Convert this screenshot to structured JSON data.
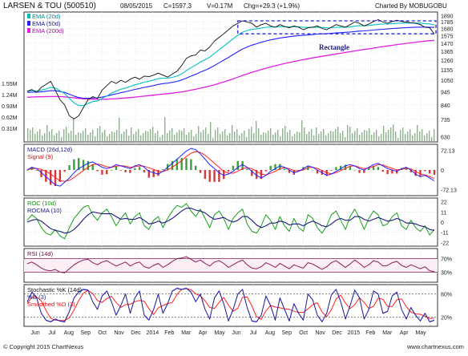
{
  "header": {
    "title": "LARSEN & TOU (500510)",
    "date": "08/05/2015",
    "close": "C=1597.3",
    "volume": "V=0.17M",
    "change": "Chg=+29.3 (+1.9%)",
    "brand": "Charted By MOBUGOBU"
  },
  "footer": {
    "copyright": "© Copyright 2015 ChartNexus",
    "site": "www.chartnexus.com"
  },
  "chart_data": {
    "type": "line",
    "x_axis_labels": [
      "Jun",
      "Jul",
      "Aug",
      "Sep",
      "Oct",
      "Nov",
      "Dec",
      "2014",
      "Feb",
      "Mar",
      "Apr",
      "May",
      "Jun",
      "Jul",
      "Aug",
      "Sep",
      "Oct",
      "Nov",
      "Dec",
      "2015",
      "Feb",
      "Mar",
      "Apr",
      "May"
    ],
    "price_panel": {
      "legend": [
        "EMA (20d)",
        "EMA (50d)",
        "EMA (200d)"
      ],
      "legend_colors": [
        "#00c0c0",
        "#2222ff",
        "#e020e0"
      ],
      "y_ticks": [
        1890,
        1785,
        1680,
        1575,
        1470,
        1365,
        1260,
        1155,
        1050,
        945,
        840,
        735,
        630
      ],
      "volume_ticks": [
        "1.55M",
        "1.24M",
        "0.93M",
        "0.62M",
        "0.31M"
      ],
      "annotation": "Rectangle",
      "rectangle_range": [
        1600,
        1800
      ],
      "close_series": [
        950,
        965,
        940,
        985,
        1010,
        1040,
        960,
        880,
        840,
        760,
        740,
        760,
        820,
        880,
        905,
        890,
        960,
        1000,
        1040,
        1020,
        1050,
        1030,
        1060,
        1080,
        1060,
        1090,
        1085,
        1100,
        1120,
        1100,
        1080,
        1110,
        1140,
        1200,
        1280,
        1310,
        1320,
        1380,
        1370,
        1420,
        1500,
        1550,
        1600,
        1660,
        1720,
        1760,
        1800,
        1780,
        1760,
        1700,
        1740,
        1760,
        1720,
        1700,
        1740,
        1710,
        1690,
        1720,
        1700,
        1660,
        1690,
        1700,
        1720,
        1680,
        1660,
        1700,
        1740,
        1720,
        1700,
        1740,
        1780,
        1760,
        1720,
        1750,
        1790,
        1820,
        1780,
        1760,
        1790,
        1810,
        1790,
        1780,
        1770,
        1760,
        1740,
        1700,
        1690,
        1597
      ],
      "ema20": [
        950,
        955,
        952,
        960,
        970,
        985,
        978,
        955,
        930,
        890,
        855,
        835,
        835,
        850,
        865,
        870,
        890,
        910,
        935,
        950,
        968,
        978,
        992,
        1008,
        1018,
        1032,
        1040,
        1052,
        1065,
        1070,
        1070,
        1078,
        1090,
        1112,
        1146,
        1178,
        1205,
        1240,
        1265,
        1295,
        1340,
        1385,
        1430,
        1480,
        1530,
        1580,
        1625,
        1650,
        1668,
        1672,
        1685,
        1698,
        1702,
        1702,
        1708,
        1708,
        1705,
        1708,
        1706,
        1698,
        1697,
        1697,
        1700,
        1696,
        1690,
        1692,
        1698,
        1700,
        1700,
        1706,
        1716,
        1722,
        1722,
        1726,
        1734,
        1745,
        1748,
        1749,
        1754,
        1760,
        1763,
        1764,
        1765,
        1765,
        1763,
        1756,
        1750,
        1735
      ],
      "ema50": [
        940,
        942,
        942,
        945,
        950,
        956,
        955,
        948,
        940,
        925,
        910,
        898,
        892,
        892,
        894,
        895,
        901,
        910,
        920,
        928,
        938,
        946,
        956,
        966,
        974,
        984,
        992,
        1001,
        1011,
        1018,
        1023,
        1030,
        1039,
        1052,
        1070,
        1090,
        1108,
        1130,
        1150,
        1172,
        1200,
        1230,
        1260,
        1292,
        1326,
        1360,
        1394,
        1420,
        1444,
        1462,
        1482,
        1500,
        1515,
        1527,
        1540,
        1550,
        1558,
        1567,
        1574,
        1578,
        1584,
        1590,
        1596,
        1600,
        1603,
        1607,
        1613,
        1618,
        1622,
        1627,
        1634,
        1640,
        1644,
        1649,
        1655,
        1663,
        1668,
        1672,
        1678,
        1684,
        1688,
        1692,
        1696,
        1699,
        1701,
        1701,
        1700,
        1696
      ],
      "ema200": [
        900,
        902,
        903,
        904,
        905,
        906,
        906,
        905,
        903,
        899,
        895,
        891,
        887,
        885,
        884,
        883,
        883,
        884,
        886,
        888,
        891,
        894,
        897,
        901,
        905,
        909,
        913,
        917,
        922,
        926,
        930,
        934,
        939,
        945,
        952,
        960,
        968,
        977,
        986,
        996,
        1008,
        1021,
        1034,
        1049,
        1064,
        1080,
        1097,
        1113,
        1128,
        1142,
        1157,
        1171,
        1184,
        1197,
        1210,
        1222,
        1233,
        1245,
        1256,
        1266,
        1276,
        1286,
        1296,
        1305,
        1314,
        1323,
        1333,
        1342,
        1351,
        1360,
        1370,
        1379,
        1388,
        1396,
        1406,
        1416,
        1425,
        1433,
        1442,
        1451,
        1459,
        1467,
        1475,
        1483,
        1490,
        1497,
        1503,
        1508
      ]
    },
    "macd_panel": {
      "legend": [
        "MACD (26d,12d)",
        "Signal (9)"
      ],
      "legend_colors": [
        "#2222ff",
        "#ff2020"
      ],
      "y_ticks": [
        "72.13",
        "0",
        "-72.13"
      ],
      "macd": [
        0,
        10,
        5,
        -10,
        -25,
        -40,
        -55,
        -60,
        -45,
        -30,
        -10,
        5,
        15,
        25,
        30,
        20,
        10,
        5,
        10,
        20,
        15,
        10,
        5,
        15,
        20,
        10,
        -5,
        -10,
        -15,
        -5,
        10,
        25,
        40,
        55,
        70,
        80,
        75,
        60,
        40,
        20,
        5,
        -10,
        -20,
        -15,
        -5,
        10,
        20,
        10,
        -5,
        -20,
        -30,
        -20,
        -5,
        5,
        15,
        10,
        0,
        -10,
        -5,
        5,
        15,
        10,
        0,
        -10,
        -20,
        -15,
        -5,
        5,
        15,
        20,
        15,
        5,
        0,
        10,
        20,
        25,
        15,
        5,
        0,
        -5,
        5,
        10,
        0,
        -15,
        -25,
        -20,
        -30,
        -40
      ],
      "signal": [
        0,
        5,
        6,
        2,
        -5,
        -15,
        -28,
        -40,
        -42,
        -38,
        -28,
        -15,
        -2,
        10,
        20,
        22,
        18,
        12,
        10,
        14,
        16,
        14,
        10,
        12,
        15,
        14,
        8,
        2,
        -5,
        -6,
        0,
        10,
        22,
        35,
        50,
        62,
        68,
        65,
        55,
        40,
        25,
        10,
        -5,
        -12,
        -12,
        -5,
        5,
        8,
        5,
        -5,
        -15,
        -18,
        -12,
        -5,
        5,
        8,
        5,
        -2,
        -4,
        0,
        8,
        10,
        6,
        -2,
        -10,
        -14,
        -10,
        -2,
        6,
        14,
        15,
        10,
        5,
        7,
        13,
        20,
        18,
        12,
        6,
        1,
        2,
        6,
        4,
        -5,
        -15,
        -18,
        -24,
        -32
      ]
    },
    "roc_panel": {
      "legend": [
        "ROC (10d)",
        "ROCMA (10)"
      ],
      "legend_colors": [
        "#1aa01a",
        "#1a1a80"
      ],
      "y_ticks": [
        "22",
        "11",
        "0",
        "-11",
        "-22"
      ],
      "roc": [
        2,
        8,
        4,
        -6,
        -12,
        -14,
        -8,
        -15,
        -18,
        -6,
        4,
        10,
        16,
        18,
        8,
        2,
        10,
        14,
        6,
        -4,
        4,
        10,
        -2,
        6,
        10,
        -4,
        -8,
        2,
        6,
        -6,
        4,
        12,
        18,
        16,
        20,
        12,
        6,
        14,
        4,
        -6,
        8,
        12,
        4,
        -8,
        4,
        10,
        14,
        -2,
        -10,
        -12,
        -4,
        8,
        2,
        -8,
        6,
        -4,
        -10,
        4,
        -6,
        -10,
        8,
        4,
        -6,
        -12,
        -4,
        8,
        12,
        2,
        -8,
        6,
        14,
        4,
        -8,
        4,
        12,
        8,
        -4,
        -2,
        6,
        10,
        -4,
        -8,
        2,
        -6,
        -10,
        -4,
        -14,
        -8
      ],
      "rocma": [
        0,
        2,
        3,
        1,
        -3,
        -7,
        -9,
        -10,
        -12,
        -11,
        -8,
        -3,
        3,
        8,
        11,
        10,
        9,
        9,
        9,
        6,
        3,
        4,
        3,
        3,
        5,
        2,
        -2,
        -1,
        1,
        -1,
        1,
        4,
        8,
        12,
        15,
        15,
        13,
        12,
        10,
        6,
        3,
        4,
        5,
        2,
        0,
        2,
        6,
        6,
        2,
        -3,
        -6,
        -4,
        -1,
        -1,
        1,
        0,
        -3,
        -2,
        -2,
        -4,
        -1,
        1,
        -1,
        -4,
        -5,
        -2,
        2,
        4,
        2,
        2,
        6,
        6,
        3,
        1,
        3,
        5,
        3,
        1,
        2,
        4,
        2,
        -1,
        -1,
        -2,
        -4,
        -5,
        -8,
        -9
      ]
    },
    "rsi_panel": {
      "legend": [
        "RSI (14d)"
      ],
      "legend_colors": [
        "#8a1a5a"
      ],
      "y_ticks": [
        "70%",
        "30%"
      ],
      "rsi": [
        55,
        60,
        52,
        42,
        36,
        34,
        38,
        30,
        28,
        40,
        52,
        60,
        66,
        68,
        58,
        52,
        60,
        64,
        56,
        48,
        54,
        60,
        48,
        56,
        60,
        46,
        42,
        50,
        56,
        44,
        52,
        62,
        70,
        72,
        76,
        68,
        60,
        66,
        56,
        48,
        60,
        64,
        56,
        44,
        52,
        60,
        66,
        52,
        42,
        40,
        46,
        58,
        52,
        44,
        56,
        48,
        40,
        52,
        46,
        42,
        58,
        54,
        46,
        38,
        46,
        58,
        64,
        54,
        44,
        54,
        66,
        56,
        44,
        52,
        64,
        60,
        48,
        50,
        58,
        62,
        50,
        44,
        52,
        46,
        40,
        46,
        34,
        32
      ],
      "levels": [
        70,
        30
      ]
    },
    "stochastic_panel": {
      "legend": [
        "Stochastic %K (14d)",
        "%D (3)",
        "Smoothed %D (3)"
      ],
      "legend_colors": [
        "#222222",
        "#2222ff",
        "#ff2020"
      ],
      "y_ticks": [
        "80%",
        "20%"
      ],
      "k": [
        60,
        85,
        70,
        30,
        12,
        8,
        15,
        10,
        8,
        35,
        70,
        85,
        92,
        90,
        60,
        40,
        75,
        88,
        60,
        25,
        50,
        80,
        30,
        70,
        88,
        25,
        12,
        40,
        80,
        30,
        55,
        88,
        95,
        92,
        95,
        85,
        60,
        80,
        40,
        15,
        70,
        88,
        55,
        10,
        40,
        80,
        92,
        45,
        10,
        8,
        25,
        75,
        50,
        12,
        70,
        40,
        10,
        55,
        30,
        12,
        80,
        65,
        25,
        8,
        30,
        78,
        92,
        60,
        15,
        50,
        90,
        70,
        15,
        40,
        88,
        80,
        30,
        35,
        75,
        85,
        40,
        15,
        45,
        25,
        10,
        30,
        8,
        12
      ],
      "d": [
        55,
        72,
        72,
        62,
        37,
        17,
        12,
        11,
        11,
        18,
        38,
        63,
        82,
        89,
        81,
        63,
        58,
        68,
        74,
        58,
        45,
        52,
        53,
        60,
        63,
        61,
        42,
        26,
        44,
        50,
        55,
        58,
        79,
        92,
        94,
        91,
        80,
        75,
        62,
        45,
        42,
        58,
        71,
        51,
        35,
        43,
        71,
        72,
        49,
        21,
        14,
        36,
        50,
        46,
        44,
        41,
        40,
        35,
        32,
        32,
        41,
        52,
        57,
        33,
        21,
        39,
        67,
        77,
        56,
        42,
        52,
        70,
        58,
        42,
        48,
        69,
        66,
        48,
        47,
        65,
        67,
        47,
        33,
        28,
        27,
        22,
        16,
        17
      ],
      "levels": [
        80,
        20
      ]
    }
  }
}
